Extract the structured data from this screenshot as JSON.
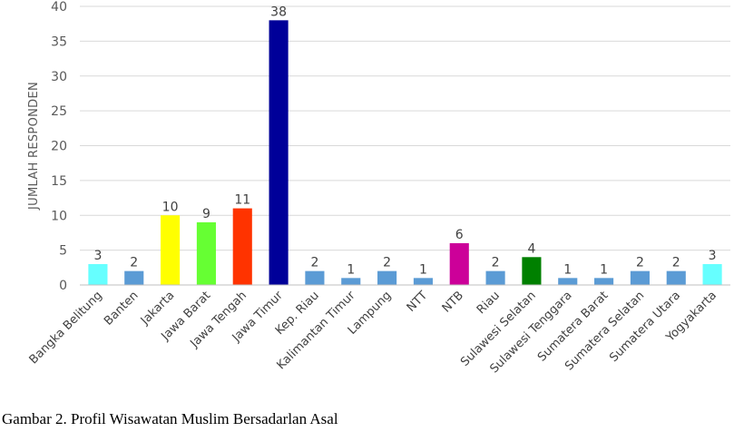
{
  "caption": "Gambar 2. Profil Wisawatan Muslim Bersadarlan Asal",
  "chart_data": {
    "type": "bar",
    "title": "",
    "xlabel": "",
    "ylabel": "JUMLAH RESPONDEN",
    "ylim": [
      0,
      40
    ],
    "yticks": [
      0,
      5,
      10,
      15,
      20,
      25,
      30,
      35,
      40
    ],
    "grid": true,
    "categories": [
      "Bangka Belitung",
      "Banten",
      "Jakarta",
      "Jawa Barat",
      "Jawa Tengah",
      "Jawa Timur",
      "Kep. Riau",
      "Kalimantan Timur",
      "Lampung",
      "NTT",
      "NTB",
      "Riau",
      "Sulawesi Selatan",
      "Sulawesi Tenggara",
      "Sumatera Barat",
      "Sumatera Selatan",
      "Sumatera Utara",
      "Yogyakarta"
    ],
    "values": [
      3,
      2,
      10,
      9,
      11,
      38,
      2,
      1,
      2,
      1,
      6,
      2,
      4,
      1,
      1,
      2,
      2,
      3
    ],
    "colors": [
      "#66FFFF",
      "#5B9BD5",
      "#FFFF00",
      "#66FF33",
      "#FF3300",
      "#000099",
      "#5B9BD5",
      "#5B9BD5",
      "#5B9BD5",
      "#5B9BD5",
      "#CC0099",
      "#5B9BD5",
      "#008000",
      "#5B9BD5",
      "#5B9BD5",
      "#5B9BD5",
      "#5B9BD5",
      "#66FFFF"
    ],
    "data_labels": [
      "3",
      "2",
      "10",
      "9",
      "11",
      "38",
      "2",
      "1",
      "2",
      "1",
      "6",
      "2",
      "4",
      "1",
      "1",
      "2",
      "2",
      "3"
    ]
  }
}
